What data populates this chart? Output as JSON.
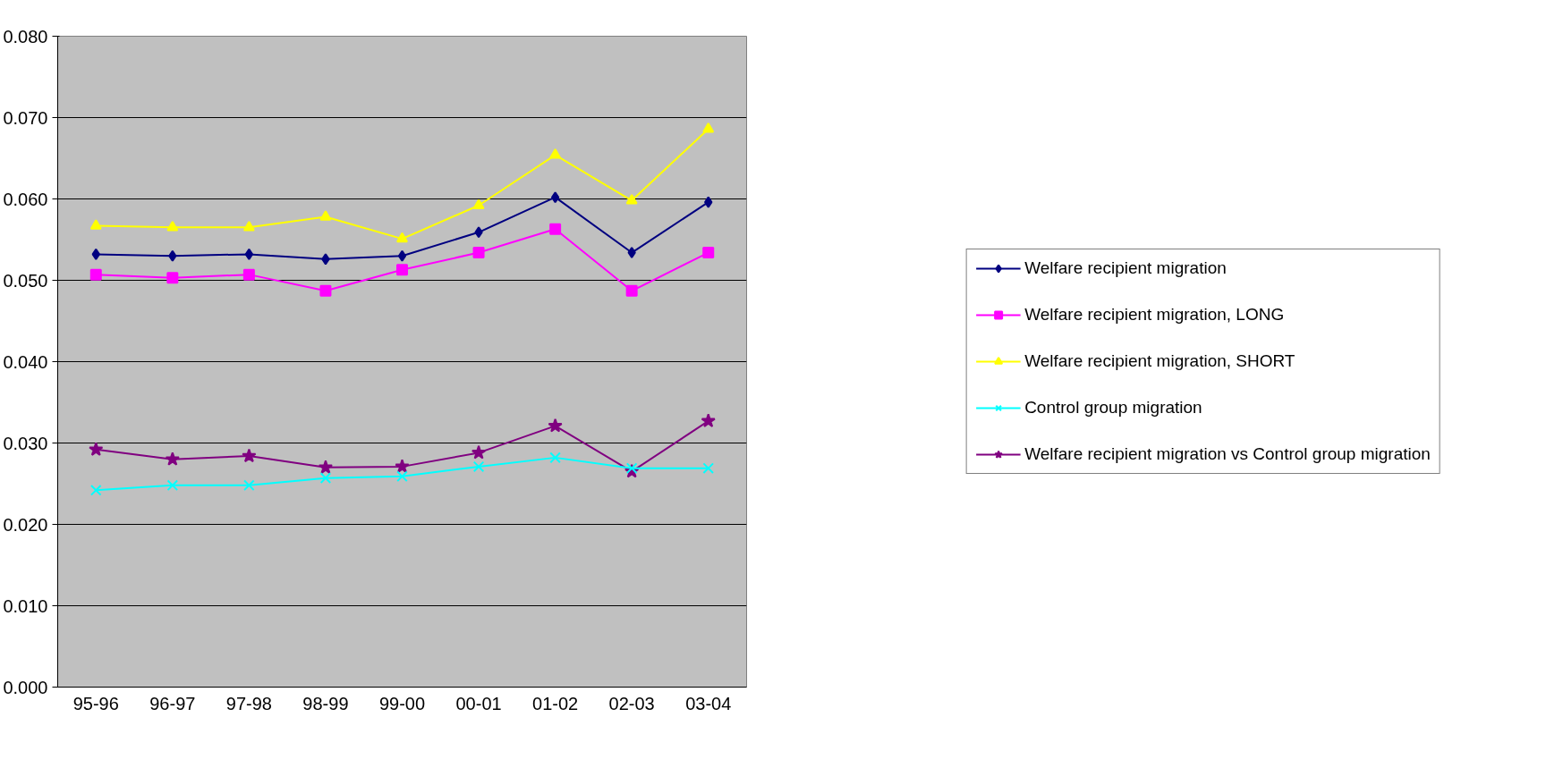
{
  "chart_data": {
    "type": "line",
    "categories": [
      "95-96",
      "96-97",
      "97-98",
      "98-99",
      "99-00",
      "00-01",
      "01-02",
      "02-03",
      "03-04"
    ],
    "ylim": [
      0,
      0.08
    ],
    "yticks": [
      {
        "value": 0,
        "label": "0.000"
      },
      {
        "value": 0.01,
        "label": "0.010"
      },
      {
        "value": 0.02,
        "label": "0.020"
      },
      {
        "value": 0.03,
        "label": "0.030"
      },
      {
        "value": 0.04,
        "label": "0.040"
      },
      {
        "value": 0.05,
        "label": "0.050"
      },
      {
        "value": 0.06,
        "label": "0.060"
      },
      {
        "value": 0.07,
        "label": "0.070"
      },
      {
        "value": 0.08,
        "label": "0.080"
      }
    ],
    "grid": "y",
    "legend": "right",
    "line_style": "solid",
    "series": [
      {
        "name": "Welfare recipient migration",
        "color": "#000080",
        "marker": "diamond",
        "values": [
          0.0532,
          0.053,
          0.0532,
          0.0526,
          0.053,
          0.0559,
          0.0602,
          0.0534,
          0.0596
        ]
      },
      {
        "name": "Welfare recipient migration, LONG",
        "color": "#ff00ff",
        "marker": "square",
        "values": [
          0.0507,
          0.0503,
          0.0507,
          0.0487,
          0.0513,
          0.0534,
          0.0563,
          0.0487,
          0.0534
        ]
      },
      {
        "name": "Welfare recipient migration, SHORT",
        "color": "#ffff00",
        "marker": "triangle",
        "values": [
          0.0567,
          0.0565,
          0.0565,
          0.0578,
          0.0551,
          0.0592,
          0.0654,
          0.0598,
          0.0686
        ]
      },
      {
        "name": "Control group migration",
        "color": "#00ffff",
        "marker": "cross",
        "values": [
          0.0242,
          0.0248,
          0.0248,
          0.0257,
          0.0259,
          0.0271,
          0.0282,
          0.0269,
          0.0269
        ]
      },
      {
        "name": "Welfare recipient migration vs Control group migration",
        "color": "#800080",
        "marker": "star",
        "values": [
          0.0292,
          0.028,
          0.0284,
          0.027,
          0.0271,
          0.0288,
          0.0321,
          0.0265,
          0.0327
        ]
      }
    ]
  }
}
